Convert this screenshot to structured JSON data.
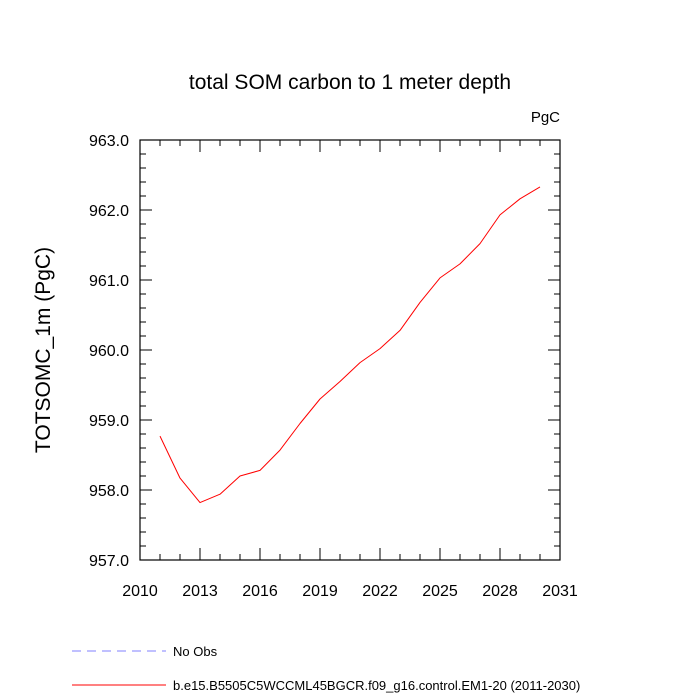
{
  "chart_data": {
    "type": "line",
    "title": "total SOM carbon to 1 meter depth",
    "units_label": "PgC",
    "ylabel": "TOTSOMC_1m  (PgC)",
    "xlabel": "",
    "xlim": [
      2010,
      2031
    ],
    "ylim": [
      957.0,
      963.0
    ],
    "x_ticks": [
      2010,
      2013,
      2016,
      2019,
      2022,
      2025,
      2028,
      2031
    ],
    "y_ticks": [
      "957.0",
      "958.0",
      "959.0",
      "960.0",
      "961.0",
      "962.0",
      "963.0"
    ],
    "series": [
      {
        "name": "b.e15.B5505C5WCCML45BGCR.f09_g16.control.EM1-20 (2011-2030)",
        "color": "#ff0000",
        "style": "solid",
        "x": [
          2011,
          2012,
          2013,
          2014,
          2015,
          2016,
          2017,
          2018,
          2019,
          2020,
          2021,
          2022,
          2023,
          2024,
          2025,
          2026,
          2027,
          2028,
          2029,
          2030
        ],
        "values": [
          958.77,
          958.17,
          957.82,
          957.94,
          958.2,
          958.28,
          958.57,
          958.95,
          959.3,
          959.55,
          959.82,
          960.02,
          960.28,
          960.68,
          961.03,
          961.23,
          961.52,
          961.93,
          962.16,
          962.33
        ]
      }
    ],
    "legend": [
      {
        "label": "No Obs",
        "color": "#8080ff",
        "style": "dashed"
      },
      {
        "label": "b.e15.B5505C5WCCML45BGCR.f09_g16.control.EM1-20 (2011-2030)",
        "color": "#ff0000",
        "style": "solid"
      }
    ]
  }
}
